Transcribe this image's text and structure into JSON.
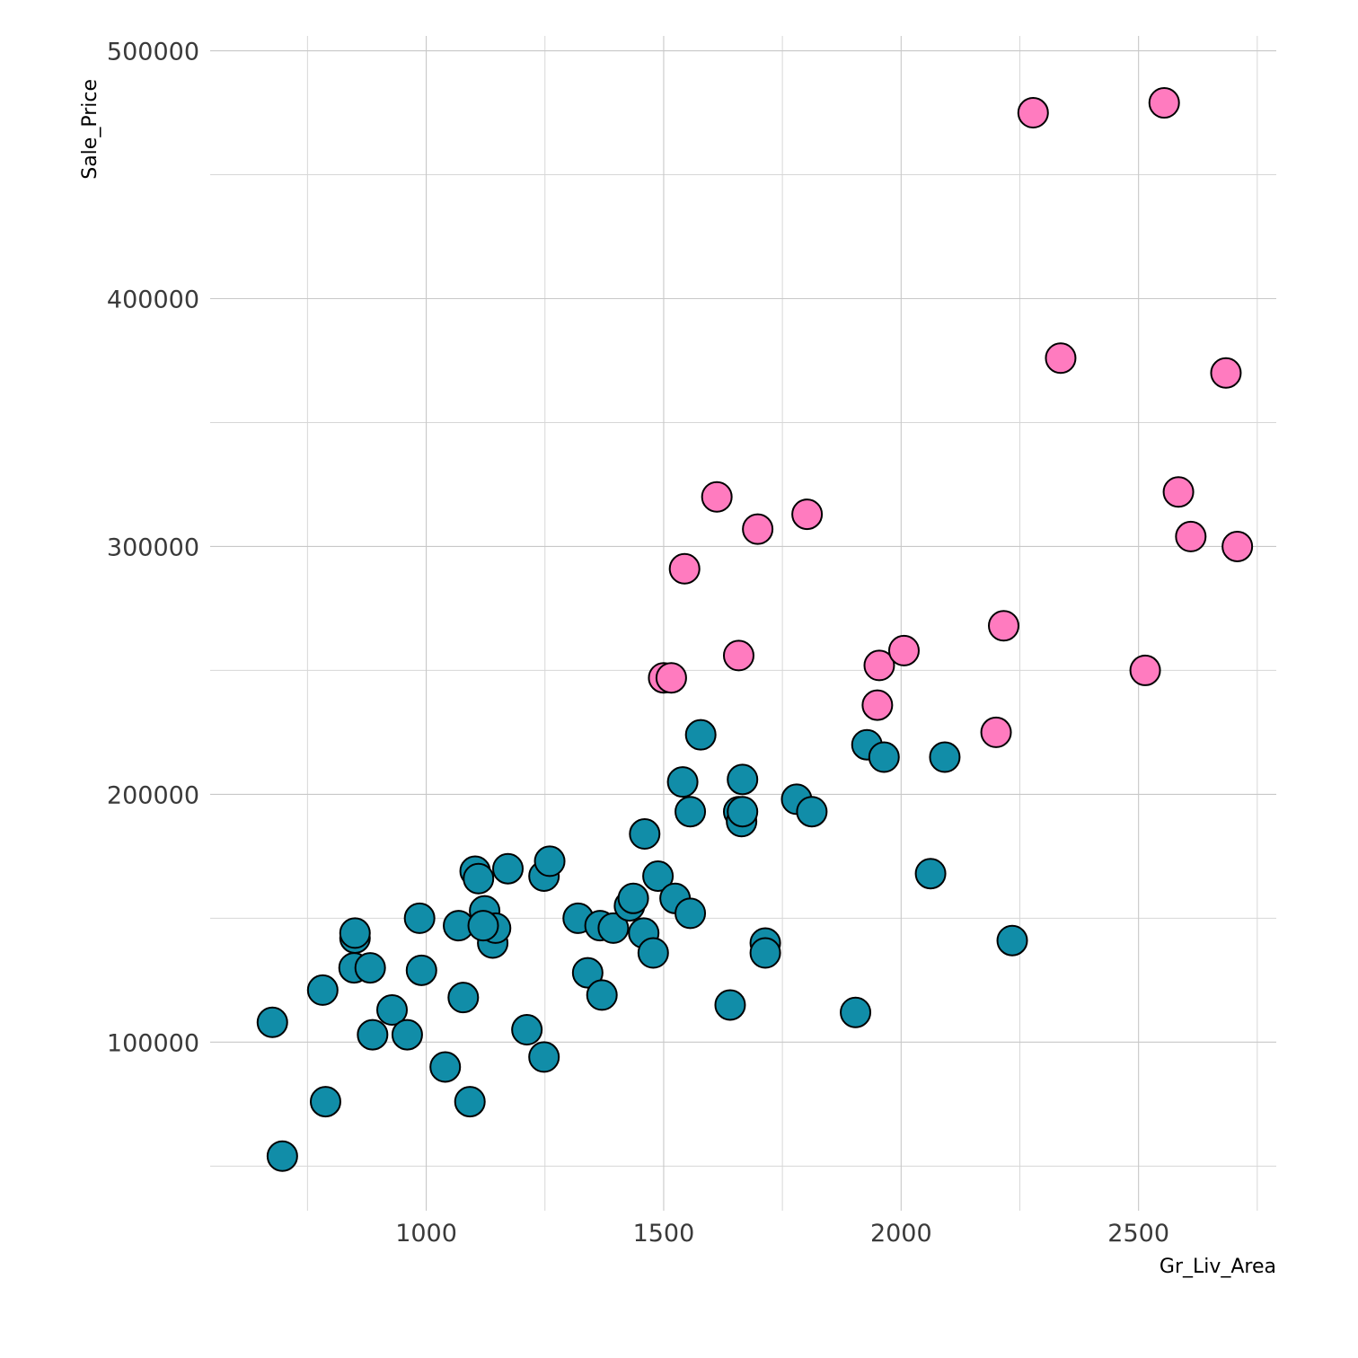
{
  "chart_data": {
    "type": "scatter",
    "title": "",
    "xlabel": "Gr_Liv_Area",
    "ylabel": "Sale_Price",
    "xlim": [
      545,
      2790
    ],
    "ylim": [
      32000,
      506000
    ],
    "x_ticks": [
      1000,
      1500,
      2000,
      2500
    ],
    "x_tick_labels": [
      "1000",
      "1500",
      "2000",
      "2500"
    ],
    "x_minor_ticks": [
      750,
      1250,
      1750,
      2250,
      2750
    ],
    "y_ticks": [
      100000,
      200000,
      300000,
      400000,
      500000
    ],
    "y_tick_labels": [
      "100000",
      "200000",
      "300000",
      "400000",
      "500000"
    ],
    "y_minor_ticks": [
      50000,
      150000,
      250000,
      350000,
      450000
    ],
    "grid": true,
    "legend": "none",
    "colors": {
      "group_a": "#118DA8",
      "group_b": "#FF7BBF",
      "outline": "#000000"
    },
    "series": [
      {
        "color": "#118DA8",
        "points": [
          [
            676,
            108000
          ],
          [
            697,
            54000
          ],
          [
            782,
            121000
          ],
          [
            788,
            76000
          ],
          [
            848,
            130000
          ],
          [
            850,
            142000
          ],
          [
            850,
            144000
          ],
          [
            882,
            130000
          ],
          [
            887,
            103000
          ],
          [
            928,
            113000
          ],
          [
            960,
            103000
          ],
          [
            986,
            150000
          ],
          [
            990,
            129000
          ],
          [
            1040,
            90000
          ],
          [
            1068,
            147000
          ],
          [
            1078,
            118000
          ],
          [
            1092,
            76000
          ],
          [
            1103,
            169000
          ],
          [
            1110,
            166000
          ],
          [
            1123,
            153000
          ],
          [
            1140,
            140000
          ],
          [
            1146,
            146000
          ],
          [
            1120,
            147000
          ],
          [
            1172,
            170000
          ],
          [
            1212,
            105000
          ],
          [
            1248,
            94000
          ],
          [
            1248,
            167000
          ],
          [
            1260,
            173000
          ],
          [
            1320,
            150000
          ],
          [
            1340,
            128000
          ],
          [
            1366,
            147000
          ],
          [
            1370,
            119000
          ],
          [
            1394,
            146000
          ],
          [
            1428,
            155000
          ],
          [
            1436,
            158000
          ],
          [
            1458,
            144000
          ],
          [
            1460,
            184000
          ],
          [
            1478,
            136000
          ],
          [
            1488,
            167000
          ],
          [
            1524,
            158000
          ],
          [
            1540,
            205000
          ],
          [
            1556,
            193000
          ],
          [
            1556,
            152000
          ],
          [
            1578,
            224000
          ],
          [
            1640,
            115000
          ],
          [
            1658,
            193000
          ],
          [
            1664,
            189000
          ],
          [
            1666,
            206000
          ],
          [
            1666,
            193000
          ],
          [
            1714,
            140000
          ],
          [
            1714,
            136000
          ],
          [
            1780,
            198000
          ],
          [
            1812,
            193000
          ],
          [
            1904,
            112000
          ],
          [
            1928,
            220000
          ],
          [
            1964,
            215000
          ],
          [
            2062,
            168000
          ],
          [
            2092,
            215000
          ],
          [
            2234,
            141000
          ]
        ]
      },
      {
        "color": "#FF7BBF",
        "points": [
          [
            1500,
            247000
          ],
          [
            1516,
            247000
          ],
          [
            1544,
            291000
          ],
          [
            1612,
            320000
          ],
          [
            1658,
            256000
          ],
          [
            1698,
            307000
          ],
          [
            1802,
            313000
          ],
          [
            1950,
            236000
          ],
          [
            1954,
            252000
          ],
          [
            2006,
            258000
          ],
          [
            2200,
            225000
          ],
          [
            2216,
            268000
          ],
          [
            2278,
            475000
          ],
          [
            2336,
            376000
          ],
          [
            2514,
            250000
          ],
          [
            2554,
            479000
          ],
          [
            2584,
            322000
          ],
          [
            2610,
            304000
          ],
          [
            2684,
            370000
          ],
          [
            2708,
            300000
          ]
        ]
      }
    ]
  }
}
